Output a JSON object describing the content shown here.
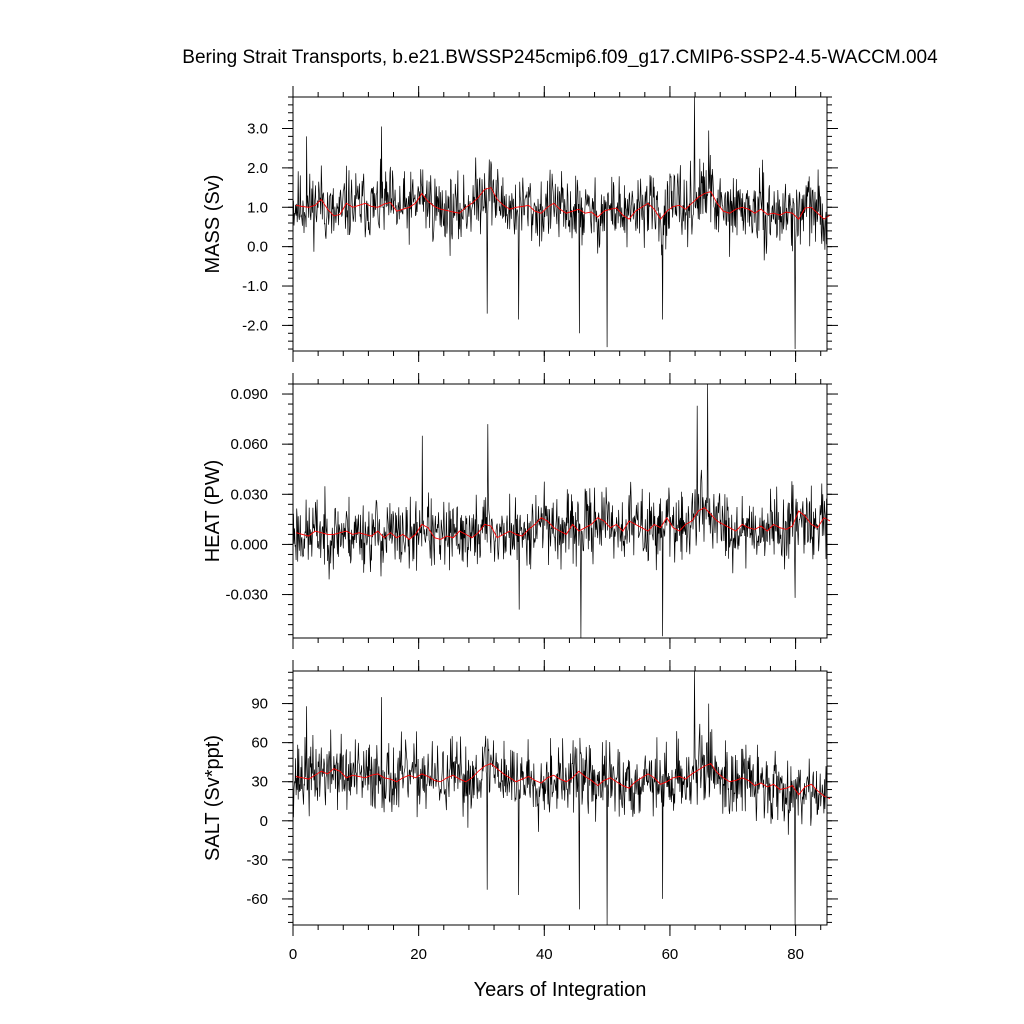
{
  "title": "Bering Strait Transports, b.e21.BWSSP245cmip6.f09_g17.CMIP6-SSP2-4.5-WACCM.004",
  "colors": {
    "monthly_line": "#000000",
    "annual_line": "#ff0000",
    "frame": "#000000",
    "background": "#ffffff"
  },
  "chart_data": [
    {
      "type": "line",
      "ylabel": "MASS (Sv)",
      "xlabel": "",
      "xlim": [
        0,
        85
      ],
      "ylim": [
        -2.65,
        3.8
      ],
      "yticks": [
        3.0,
        2.0,
        1.0,
        0.0,
        -1.0,
        -2.0
      ],
      "ytick_labels": [
        "3.0",
        "2.0",
        "1.0",
        "0.0",
        "-1.0",
        "-2.0"
      ],
      "yminor_step": 0.2,
      "xticks": [
        0,
        20,
        40,
        60,
        80
      ],
      "xtick_labels": [],
      "monthly": {
        "samples_per_year": 12,
        "mean": 1.0,
        "amplitude": 0.75,
        "seed": 11,
        "spikes": [
          [
            30.9,
            -1.7
          ],
          [
            35.9,
            -1.85
          ],
          [
            45.6,
            -2.2
          ],
          [
            50.0,
            -2.55
          ],
          [
            58.8,
            -1.85
          ],
          [
            63.9,
            3.8
          ],
          [
            66.2,
            2.95
          ],
          [
            79.9,
            -2.6
          ],
          [
            2.2,
            2.8
          ],
          [
            14.1,
            3.05
          ]
        ]
      },
      "series": [
        {
          "name": "",
          "values": [
            1.05,
            1.02,
            1.0,
            1.05,
            1.2,
            0.95,
            0.78,
            0.82,
            1.1,
            1.0,
            1.05,
            1.1,
            1.02,
            1.0,
            1.08,
            1.12,
            0.9,
            0.95,
            1.0,
            1.1,
            1.35,
            1.15,
            1.02,
            0.95,
            0.92,
            0.88,
            0.85,
            1.0,
            1.1,
            1.25,
            1.45,
            1.5,
            1.2,
            1.05,
            0.95,
            1.0,
            1.02,
            1.05,
            0.9,
            0.85,
            1.0,
            1.1,
            0.95,
            0.85,
            0.9,
            0.95,
            0.85,
            0.88,
            0.75,
            0.9,
            0.95,
            0.98,
            0.8,
            0.7,
            0.9,
            1.0,
            1.1,
            0.95,
            0.7,
            0.9,
            1.02,
            1.05,
            0.95,
            1.1,
            1.25,
            1.35,
            1.4,
            1.1,
            0.9,
            0.85,
            0.95,
            1.0,
            0.95,
            0.85,
            0.95,
            0.82,
            0.85,
            0.8,
            0.88,
            0.85,
            0.7,
            0.98,
            1.0,
            0.85,
            0.7,
            0.8
          ]
        }
      ]
    },
    {
      "type": "line",
      "ylabel": "HEAT (PW)",
      "xlabel": "",
      "xlim": [
        0,
        85
      ],
      "ylim": [
        -0.056,
        0.096
      ],
      "yticks": [
        0.09,
        0.06,
        0.03,
        0.0,
        -0.03
      ],
      "ytick_labels": [
        "0.090",
        "0.060",
        "0.030",
        "0.000",
        "-0.030"
      ],
      "yminor_step": 0.006,
      "xticks": [
        0,
        20,
        40,
        60,
        80
      ],
      "xtick_labels": [],
      "monthly": {
        "samples_per_year": 12,
        "mean": 0.009,
        "amplitude": 0.018,
        "seed": 23,
        "spikes": [
          [
            45.8,
            -0.056
          ],
          [
            36.0,
            -0.039
          ],
          [
            58.8,
            -0.055
          ],
          [
            66.0,
            0.096
          ],
          [
            64.3,
            0.083
          ],
          [
            20.6,
            0.065
          ],
          [
            79.9,
            -0.032
          ],
          [
            31.0,
            0.072
          ]
        ]
      },
      "series": [
        {
          "name": "",
          "values": [
            0.007,
            0.006,
            0.005,
            0.008,
            0.007,
            0.006,
            0.006,
            0.007,
            0.008,
            0.006,
            0.007,
            0.006,
            0.005,
            0.008,
            0.004,
            0.007,
            0.004,
            0.006,
            0.003,
            0.006,
            0.012,
            0.01,
            0.004,
            0.003,
            0.005,
            0.004,
            0.008,
            0.006,
            0.004,
            0.007,
            0.012,
            0.011,
            0.004,
            0.006,
            0.008,
            0.006,
            0.005,
            0.009,
            0.012,
            0.016,
            0.014,
            0.01,
            0.008,
            0.006,
            0.012,
            0.008,
            0.01,
            0.012,
            0.016,
            0.014,
            0.01,
            0.012,
            0.008,
            0.014,
            0.012,
            0.01,
            0.008,
            0.012,
            0.01,
            0.016,
            0.01,
            0.008,
            0.012,
            0.014,
            0.02,
            0.022,
            0.018,
            0.014,
            0.012,
            0.01,
            0.008,
            0.012,
            0.01,
            0.009,
            0.011,
            0.008,
            0.012,
            0.01,
            0.009,
            0.011,
            0.02,
            0.017,
            0.012,
            0.01,
            0.016,
            0.014
          ]
        }
      ]
    },
    {
      "type": "line",
      "ylabel": "SALT (Sv*ppt)",
      "xlabel": "Years of Integration",
      "xlim": [
        0,
        85
      ],
      "ylim": [
        -80,
        115
      ],
      "yticks": [
        90,
        60,
        30,
        0,
        -30,
        -60
      ],
      "ytick_labels": [
        "90",
        "60",
        "30",
        "0",
        "-30",
        "-60"
      ],
      "yminor_step": 6,
      "xticks": [
        0,
        20,
        40,
        60,
        80
      ],
      "xtick_labels": [
        "0",
        "20",
        "40",
        "60",
        "80"
      ],
      "monthly": {
        "samples_per_year": 12,
        "mean": 33,
        "amplitude": 24,
        "seed": 37,
        "spikes": [
          [
            45.6,
            -68
          ],
          [
            50.0,
            -80
          ],
          [
            35.9,
            -57
          ],
          [
            30.9,
            -53
          ],
          [
            58.8,
            -60
          ],
          [
            63.9,
            115
          ],
          [
            66.2,
            90
          ],
          [
            79.9,
            -80
          ],
          [
            14.1,
            95
          ],
          [
            2.2,
            88
          ]
        ]
      },
      "series": [
        {
          "name": "",
          "values": [
            34,
            33,
            32,
            35,
            38,
            36,
            40,
            38,
            33,
            35,
            34,
            33,
            35,
            36,
            33,
            32,
            30,
            33,
            35,
            33,
            36,
            34,
            31,
            30,
            33,
            35,
            32,
            30,
            33,
            38,
            42,
            44,
            40,
            36,
            33,
            30,
            32,
            34,
            31,
            29,
            33,
            35,
            32,
            30,
            33,
            38,
            34,
            31,
            27,
            31,
            33,
            30,
            27,
            25,
            30,
            33,
            36,
            33,
            28,
            30,
            33,
            34,
            32,
            36,
            39,
            42,
            44,
            37,
            33,
            30,
            31,
            33,
            31,
            27,
            29,
            26,
            28,
            24,
            25,
            27,
            20,
            26,
            28,
            23,
            19,
            17
          ]
        }
      ]
    }
  ]
}
